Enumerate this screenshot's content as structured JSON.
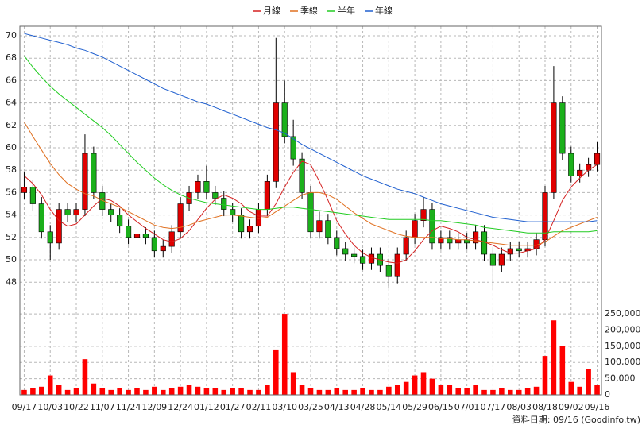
{
  "chart_data": {
    "type": "candlestick",
    "categories": [
      "09/17",
      null,
      null,
      "10/03",
      null,
      null,
      "10/22",
      null,
      null,
      "11/07",
      null,
      null,
      "11/24",
      null,
      null,
      "12/09",
      null,
      null,
      "12/24",
      null,
      null,
      "01/12",
      null,
      null,
      "01/27",
      null,
      null,
      "02/11",
      null,
      null,
      "03/10",
      null,
      null,
      "03/25",
      null,
      null,
      "04/13",
      null,
      null,
      "04/28",
      null,
      null,
      "05/14",
      null,
      null,
      "05/29",
      null,
      null,
      "06/15",
      null,
      null,
      "07/01",
      null,
      null,
      "07/17",
      null,
      null,
      "08/03",
      null,
      null,
      "08/18",
      null,
      null,
      "09/02",
      null,
      null,
      "09/16"
    ],
    "open": [
      56,
      56.5,
      55,
      52.5,
      51.5,
      54.5,
      54,
      54.5,
      59.5,
      56,
      54.5,
      54,
      53,
      52,
      52.3,
      52,
      50.8,
      51.2,
      52.5,
      55,
      56,
      57,
      56,
      55.5,
      54.5,
      54,
      52.5,
      53,
      54.5,
      57,
      64,
      61,
      59,
      56,
      52.5,
      53.5,
      52,
      51,
      50.5,
      50.3,
      49.7,
      50.5,
      49.5,
      48.5,
      50.5,
      52,
      53.5,
      54.5,
      51.5,
      52,
      51.5,
      51.8,
      51.5,
      52.5,
      50.5,
      49.5,
      50.5,
      51,
      50.8,
      51,
      51.8,
      56,
      64,
      59.5,
      57.5,
      58,
      58.5
    ],
    "high": [
      57.8,
      57.1,
      55.6,
      53.1,
      55.1,
      55.1,
      55.1,
      61.2,
      60.1,
      56.6,
      55.1,
      54.6,
      53.6,
      52.9,
      52.9,
      52.6,
      51.8,
      53.1,
      55.6,
      56.6,
      57.6,
      58.4,
      56.6,
      56.1,
      55.1,
      54.6,
      53.6,
      55.1,
      57.6,
      69.8,
      66,
      62.5,
      59.6,
      56.6,
      54.3,
      54.1,
      52.6,
      51.6,
      51.1,
      50.9,
      51.1,
      51.1,
      50.1,
      51.1,
      52.6,
      54.1,
      55.6,
      55.1,
      52.6,
      52.6,
      52.4,
      52.4,
      53.1,
      53.1,
      51.1,
      51.1,
      51.6,
      51.6,
      51.6,
      52.4,
      56.6,
      67.3,
      64.6,
      60.1,
      58.6,
      59.1,
      60.5
    ],
    "low": [
      55.4,
      54.4,
      51.9,
      50,
      50.9,
      53.4,
      53.4,
      53.9,
      55.4,
      53.9,
      53.4,
      52.4,
      51.4,
      51.4,
      51.4,
      50.2,
      50.2,
      50.6,
      51.9,
      54.4,
      55.4,
      55.4,
      54.9,
      53.9,
      53.4,
      51.9,
      51.9,
      52.4,
      53.9,
      56.4,
      60.4,
      58.4,
      55.4,
      51.9,
      51.9,
      51.4,
      50.4,
      49.9,
      49.7,
      49.1,
      49.1,
      48.9,
      47.5,
      47.9,
      49.9,
      51.4,
      52.9,
      50.9,
      50.9,
      50.9,
      50.9,
      50.9,
      50.9,
      49.9,
      47.3,
      48.9,
      49.9,
      50.2,
      50.2,
      50.4,
      51.2,
      55.4,
      58.9,
      56.9,
      56.9,
      57.4,
      57.9
    ],
    "close": [
      56.5,
      55,
      52.5,
      51.5,
      54.5,
      54,
      54.5,
      59.5,
      56,
      54.5,
      54,
      53,
      52,
      52.3,
      52,
      50.8,
      51.2,
      52.5,
      55,
      56,
      57,
      56,
      55.5,
      54.5,
      54,
      52.5,
      53,
      54.5,
      57,
      64,
      61,
      59,
      56,
      52.5,
      53.5,
      52,
      51,
      50.5,
      50.3,
      49.7,
      50.5,
      49.5,
      48.5,
      50.5,
      52,
      53.5,
      54.5,
      51.5,
      52,
      51.5,
      51.8,
      51.5,
      52.5,
      50.5,
      49.5,
      50.5,
      51,
      50.8,
      51,
      51.8,
      56,
      64,
      59.5,
      57.5,
      58,
      58.5,
      59.5
    ],
    "volume": [
      15000,
      20000,
      25000,
      60000,
      30000,
      15000,
      20000,
      110000,
      35000,
      20000,
      15000,
      20000,
      15000,
      20000,
      15000,
      25000,
      15000,
      20000,
      25000,
      30000,
      25000,
      20000,
      20000,
      15000,
      20000,
      20000,
      15000,
      15000,
      30000,
      140000,
      250000,
      70000,
      30000,
      20000,
      15000,
      15000,
      20000,
      15000,
      15000,
      20000,
      15000,
      15000,
      25000,
      30000,
      40000,
      60000,
      70000,
      50000,
      30000,
      30000,
      20000,
      20000,
      30000,
      15000,
      15000,
      20000,
      15000,
      15000,
      20000,
      25000,
      120000,
      230000,
      150000,
      40000,
      25000,
      80000,
      30000
    ],
    "up_color": "#e00000",
    "down_color": "#1bb01b",
    "volume_color": "#ff0000",
    "series": [
      {
        "name": "月線",
        "color": "#d42020",
        "values": [
          57.5,
          56.8,
          55.8,
          54.5,
          53.5,
          53,
          53.2,
          54,
          54.8,
          55.5,
          55.3,
          54.8,
          54,
          53.4,
          52.8,
          52.3,
          51.8,
          51.6,
          51.9,
          52.6,
          53.6,
          54.6,
          55.4,
          55.8,
          55.5,
          55,
          54.3,
          53.9,
          53.9,
          55,
          56.5,
          57.8,
          58.8,
          58.5,
          57,
          55.3,
          53.5,
          52.3,
          51.3,
          50.6,
          50.2,
          50,
          49.8,
          49.7,
          50,
          50.8,
          51.8,
          52.6,
          53,
          52.8,
          52.5,
          52,
          51.8,
          51.6,
          51.3,
          50.9,
          50.6,
          50.6,
          50.8,
          51,
          51.8,
          53.5,
          55.3,
          56.5,
          57.3,
          58,
          58.5
        ]
      },
      {
        "name": "季線",
        "color": "#e07020",
        "values": [
          62.3,
          61,
          59.8,
          58.6,
          57.6,
          56.8,
          56.3,
          55.9,
          55.7,
          55.3,
          55,
          54.7,
          54.3,
          53.9,
          53.5,
          53.1,
          52.9,
          52.8,
          52.9,
          53.1,
          53.4,
          53.6,
          53.8,
          54,
          54,
          53.9,
          53.8,
          53.7,
          53.8,
          54.3,
          54.8,
          55.3,
          55.8,
          56,
          56,
          55.8,
          55.4,
          54.8,
          54.2,
          53.7,
          53.2,
          52.9,
          52.6,
          52.3,
          52.1,
          52,
          52,
          52,
          51.9,
          51.9,
          51.8,
          51.8,
          51.7,
          51.6,
          51.5,
          51.4,
          51.3,
          51.3,
          51.3,
          51.3,
          51.6,
          52.1,
          52.6,
          52.9,
          53.2,
          53.5,
          53.8
        ]
      },
      {
        "name": "半年",
        "color": "#22cc22",
        "values": [
          68.2,
          67.2,
          66.3,
          65.5,
          64.8,
          64.2,
          63.6,
          63,
          62.4,
          61.8,
          61.1,
          60.3,
          59.5,
          58.7,
          58,
          57.3,
          56.7,
          56.2,
          55.8,
          55.5,
          55.3,
          55.1,
          55,
          54.9,
          54.8,
          54.7,
          54.6,
          54.5,
          54.5,
          54.6,
          54.7,
          54.7,
          54.6,
          54.5,
          54.4,
          54.3,
          54.2,
          54.1,
          54,
          53.9,
          53.8,
          53.7,
          53.6,
          53.6,
          53.6,
          53.6,
          53.6,
          53.5,
          53.5,
          53.4,
          53.3,
          53.2,
          53.1,
          52.9,
          52.8,
          52.7,
          52.6,
          52.5,
          52.4,
          52.4,
          52.4,
          52.5,
          52.5,
          52.5,
          52.5,
          52.5,
          52.6
        ]
      },
      {
        "name": "年線",
        "color": "#1f5fcf",
        "values": [
          70.2,
          70,
          69.8,
          69.6,
          69.4,
          69.2,
          68.9,
          68.7,
          68.4,
          68.1,
          67.7,
          67.3,
          66.9,
          66.5,
          66.1,
          65.7,
          65.3,
          65,
          64.7,
          64.4,
          64.1,
          63.9,
          63.6,
          63.3,
          63,
          62.7,
          62.4,
          62.1,
          61.8,
          61.6,
          61.3,
          60.8,
          60.3,
          59.9,
          59.5,
          59.1,
          58.7,
          58.3,
          57.9,
          57.5,
          57.2,
          56.9,
          56.6,
          56.3,
          56.1,
          55.9,
          55.6,
          55.3,
          55,
          54.8,
          54.6,
          54.4,
          54.2,
          54,
          53.8,
          53.7,
          53.6,
          53.5,
          53.4,
          53.4,
          53.4,
          53.4,
          53.4,
          53.4,
          53.4,
          53.4,
          53.5
        ]
      }
    ],
    "ylim": [
      46.6,
      70.85
    ],
    "yticks": [
      48,
      50,
      52,
      54,
      56,
      58,
      60,
      62,
      64,
      66,
      68,
      70
    ],
    "volume_ylim": [
      0,
      287000
    ],
    "volume_yticks": [
      0,
      {
        "value": 50000,
        "label": "50,000"
      },
      {
        "value": 100000,
        "label": "100,000"
      },
      {
        "value": 150000,
        "label": "150,000"
      },
      {
        "value": 200000,
        "label": "200,000"
      },
      {
        "value": 250000,
        "label": "250,000"
      }
    ],
    "grid": true,
    "source": "資料日期: 09/16 (Goodinfo.tw)"
  }
}
